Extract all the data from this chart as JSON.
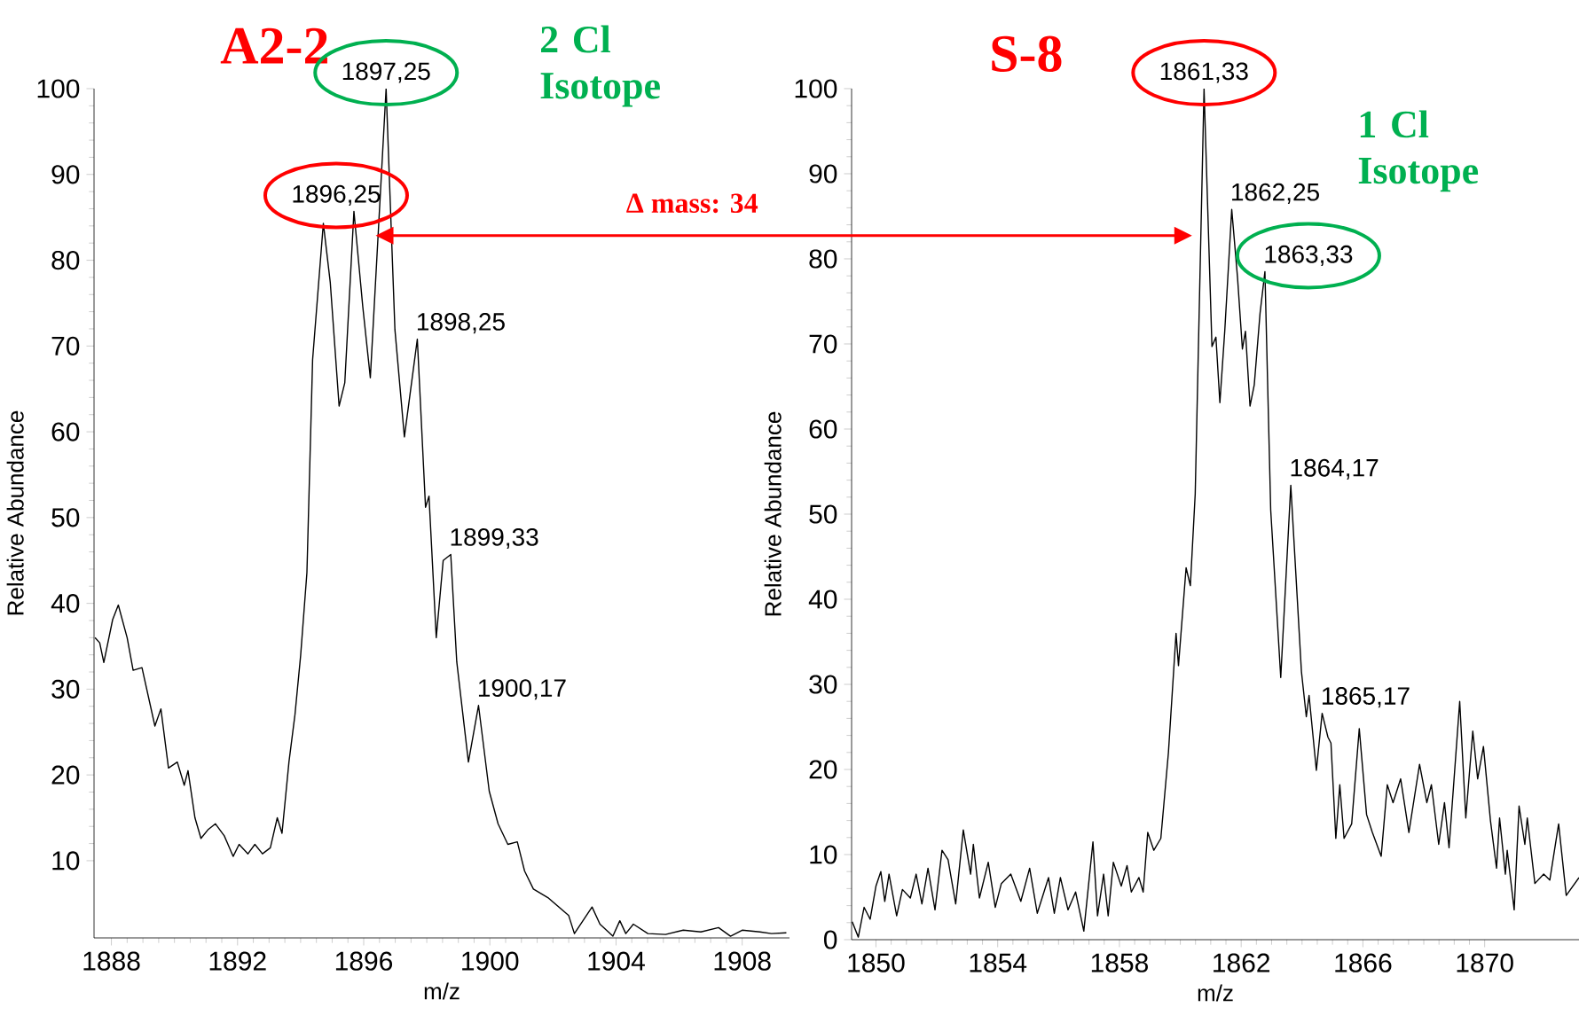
{
  "chart_data": [
    {
      "type": "line",
      "title": "A2-2",
      "xlabel": "m/z",
      "ylabel": "Relative Abundance",
      "color": "#000000",
      "xlim": [
        1887.45,
        1909.5
      ],
      "ylim": [
        1,
        100
      ],
      "xticks": [
        1888,
        1892,
        1896,
        1900,
        1904,
        1908
      ],
      "yticks": [
        10,
        20,
        30,
        40,
        50,
        60,
        70,
        80,
        90,
        100
      ],
      "x": [
        1887.48,
        1887.63,
        1887.76,
        1888.04,
        1888.22,
        1888.5,
        1888.69,
        1888.97,
        1889.38,
        1889.57,
        1889.81,
        1890.09,
        1890.31,
        1890.43,
        1890.65,
        1890.84,
        1891.06,
        1891.3,
        1891.58,
        1891.86,
        1892.05,
        1892.33,
        1892.55,
        1892.79,
        1893.04,
        1893.26,
        1893.41,
        1893.63,
        1893.82,
        1894.0,
        1894.2,
        1894.38,
        1894.72,
        1894.94,
        1895.22,
        1895.4,
        1895.69,
        1895.97,
        1896.21,
        1896.71,
        1896.99,
        1897.29,
        1897.7,
        1897.96,
        1898.07,
        1898.3,
        1898.52,
        1898.76,
        1898.95,
        1899.32,
        1899.64,
        1899.98,
        1900.26,
        1900.57,
        1900.87,
        1901.1,
        1901.38,
        1901.84,
        1902.5,
        1902.68,
        1903.24,
        1903.49,
        1903.9,
        1904.12,
        1904.31,
        1904.55,
        1905.01,
        1905.57,
        1906.13,
        1906.69,
        1907.25,
        1907.63,
        1908.0,
        1908.56,
        1908.93,
        1909.4
      ],
      "values": [
        36.0,
        35.4,
        33.1,
        38.1,
        39.8,
        36.0,
        32.2,
        32.5,
        25.7,
        27.7,
        20.8,
        21.5,
        18.8,
        20.5,
        15.0,
        12.6,
        13.6,
        14.3,
        12.9,
        10.5,
        11.9,
        10.8,
        11.9,
        10.8,
        11.5,
        15.0,
        13.2,
        21.5,
        27.0,
        33.9,
        43.6,
        68.4,
        84.3,
        77.4,
        63.0,
        65.7,
        85.7,
        74.6,
        66.3,
        100,
        71.9,
        59.4,
        70.8,
        51.2,
        52.5,
        36.0,
        45.0,
        45.7,
        33.2,
        21.5,
        28.1,
        18.1,
        14.3,
        11.9,
        12.2,
        8.8,
        6.7,
        5.7,
        3.6,
        1.5,
        4.6,
        2.6,
        1.2,
        3.0,
        1.5,
        2.6,
        1.5,
        1.4,
        1.9,
        1.7,
        2.2,
        1.2,
        1.9,
        1.7,
        1.5,
        1.6
      ],
      "annotations": [
        {
          "text": "1896,25",
          "x": 1895.69,
          "y": 85.7
        },
        {
          "text": "1897,25",
          "x": 1896.71,
          "y": 100
        },
        {
          "text": "1898,25",
          "x": 1897.7,
          "y": 70.8
        },
        {
          "text": "1899,33",
          "x": 1898.76,
          "y": 45.7
        },
        {
          "text": "1900,17",
          "x": 1899.64,
          "y": 28.1
        },
        "2 Cl Isotope",
        "Δ mass: 34"
      ]
    },
    {
      "type": "line",
      "title": "S-8",
      "xlabel": "m/z",
      "ylabel": "Relative Abundance",
      "color": "#000000",
      "xlim": [
        1849.2,
        1873.1
      ],
      "ylim": [
        0,
        100
      ],
      "xticks": [
        1850,
        1854,
        1858,
        1862,
        1866,
        1870
      ],
      "yticks": [
        0,
        10,
        20,
        30,
        40,
        50,
        60,
        70,
        80,
        90,
        100
      ],
      "x": [
        1849.22,
        1849.42,
        1849.61,
        1849.81,
        1850.0,
        1850.16,
        1850.29,
        1850.43,
        1850.68,
        1850.87,
        1851.13,
        1851.32,
        1851.51,
        1851.71,
        1851.94,
        1852.17,
        1852.37,
        1852.62,
        1852.87,
        1853.11,
        1853.2,
        1853.4,
        1853.69,
        1853.92,
        1854.12,
        1854.43,
        1854.76,
        1855.05,
        1855.3,
        1855.67,
        1855.86,
        1856.06,
        1856.31,
        1856.56,
        1856.83,
        1857.13,
        1857.28,
        1857.48,
        1857.63,
        1857.8,
        1858.06,
        1858.25,
        1858.39,
        1858.64,
        1858.78,
        1858.93,
        1859.13,
        1859.36,
        1859.61,
        1859.86,
        1859.94,
        1860.19,
        1860.33,
        1860.49,
        1860.78,
        1861.04,
        1861.17,
        1861.3,
        1861.46,
        1861.69,
        1861.88,
        1862.04,
        1862.14,
        1862.29,
        1862.43,
        1862.62,
        1862.78,
        1862.97,
        1863.3,
        1863.63,
        1863.98,
        1864.14,
        1864.23,
        1864.47,
        1864.66,
        1864.85,
        1864.95,
        1865.11,
        1865.24,
        1865.38,
        1865.63,
        1865.88,
        1866.12,
        1866.31,
        1866.6,
        1866.8,
        1866.99,
        1867.24,
        1867.51,
        1867.86,
        1868.1,
        1868.25,
        1868.49,
        1868.68,
        1868.83,
        1869.18,
        1869.38,
        1869.61,
        1869.77,
        1869.96,
        1870.19,
        1870.39,
        1870.49,
        1870.68,
        1870.74,
        1870.97,
        1871.13,
        1871.32,
        1871.4,
        1871.65,
        1871.94,
        1872.14,
        1872.43,
        1872.68,
        1873.1
      ],
      "values": [
        2.1,
        0.3,
        3.8,
        2.4,
        6.3,
        8.0,
        4.5,
        7.7,
        2.8,
        5.9,
        4.9,
        7.7,
        4.2,
        8.4,
        3.5,
        10.5,
        9.4,
        4.2,
        12.9,
        7.7,
        11.2,
        4.9,
        9.1,
        3.8,
        6.6,
        7.7,
        4.5,
        8.4,
        3.1,
        7.3,
        3.1,
        7.3,
        3.5,
        5.6,
        1.0,
        11.5,
        2.8,
        7.7,
        2.8,
        9.1,
        6.3,
        8.7,
        5.6,
        7.3,
        5.6,
        12.6,
        10.5,
        11.9,
        22.0,
        36.0,
        32.2,
        43.7,
        41.6,
        52.4,
        100,
        69.7,
        70.8,
        63.1,
        71.5,
        85.8,
        77.8,
        69.4,
        71.5,
        62.7,
        65.2,
        73.6,
        78.5,
        50.5,
        30.8,
        53.4,
        31.5,
        26.2,
        28.7,
        19.9,
        26.6,
        23.8,
        23.1,
        11.9,
        18.2,
        11.9,
        13.6,
        24.8,
        14.7,
        12.6,
        9.8,
        18.2,
        16.1,
        18.9,
        12.6,
        20.6,
        16.1,
        18.2,
        11.2,
        16.1,
        10.8,
        28.0,
        14.3,
        24.5,
        18.9,
        22.7,
        14.0,
        8.4,
        14.3,
        7.7,
        10.5,
        3.5,
        15.7,
        11.2,
        14.3,
        6.6,
        7.7,
        7.0,
        13.6,
        5.2,
        7.3
      ],
      "annotations": [
        {
          "text": "1861,33",
          "x": 1860.78,
          "y": 100
        },
        {
          "text": "1862,25",
          "x": 1861.69,
          "y": 85.8
        },
        {
          "text": "1863,33",
          "x": 1862.78,
          "y": 78.5
        },
        {
          "text": "1864,17",
          "x": 1863.63,
          "y": 53.4
        },
        {
          "text": "1865,17",
          "x": 1864.66,
          "y": 26.6
        },
        "1 Cl Isotope"
      ]
    }
  ]
}
